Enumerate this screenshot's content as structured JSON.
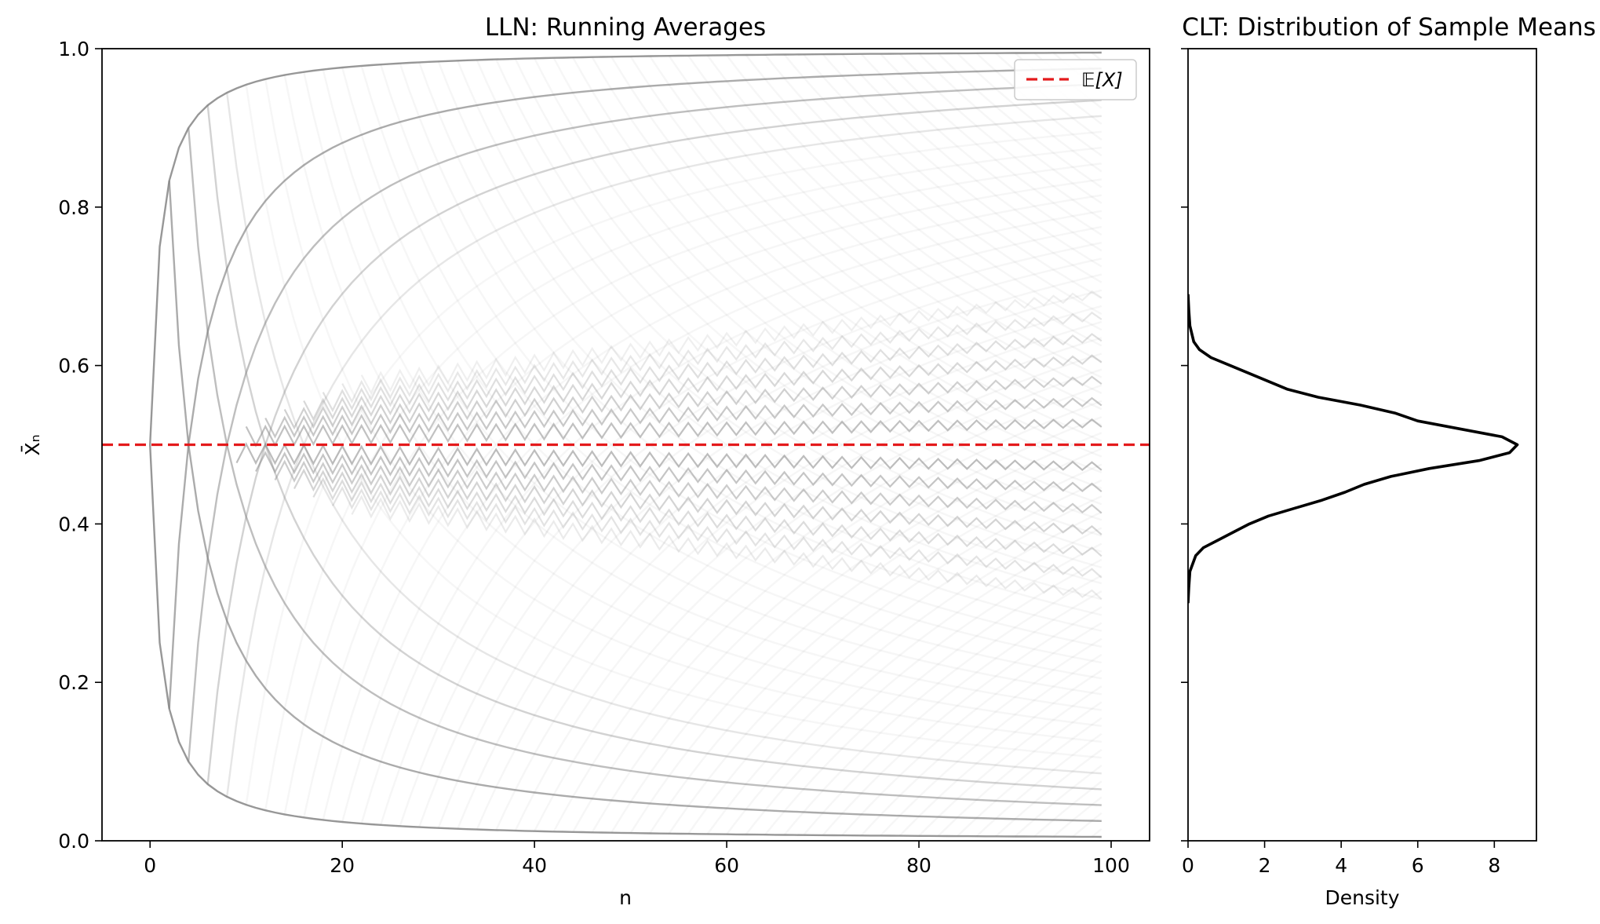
{
  "chart_data": [
    {
      "type": "line",
      "title": "LLN: Running Averages",
      "xlabel": "n",
      "ylabel": "X̄ₙ",
      "xlim": [
        -5,
        104
      ],
      "ylim": [
        0.0,
        1.0
      ],
      "xticks": [
        0,
        20,
        40,
        60,
        80,
        100
      ],
      "yticks": [
        0.0,
        0.2,
        0.4,
        0.6,
        0.8,
        1.0
      ],
      "ytick_labels": [
        "0.0",
        "0.2",
        "0.4",
        "0.6",
        "0.8",
        "1.0"
      ],
      "series_description_n_range": [
        0,
        99
      ],
      "reference_line": {
        "y": 0.5,
        "label": "𝔼[X]",
        "color": "#e41a1c",
        "style": "dashed"
      },
      "legend": {
        "entries": [
          "𝔼[X]"
        ],
        "placement": "top-right"
      },
      "series_color": "#808080",
      "trajectory_envelope": [
        {
          "n": 10,
          "upper": 0.95,
          "lower": 0.05
        },
        {
          "n": 20,
          "upper": 0.85,
          "lower": 0.16
        },
        {
          "n": 40,
          "upper": 0.76,
          "lower": 0.24
        },
        {
          "n": 60,
          "upper": 0.7,
          "lower": 0.3
        },
        {
          "n": 80,
          "upper": 0.67,
          "lower": 0.33
        },
        {
          "n": 99,
          "upper": 0.65,
          "lower": 0.34
        }
      ]
    },
    {
      "type": "line",
      "title": "CLT: Distribution of Sample Means",
      "xlabel": "Density",
      "ylabel": "",
      "xlim": [
        0,
        9.1
      ],
      "ylim": [
        0.0,
        1.0
      ],
      "xticks": [
        0,
        2,
        4,
        6,
        8
      ],
      "orientation": "horizontal density (sample mean on y-axis)",
      "color": "#000000",
      "points": [
        {
          "y": 0.3,
          "density": 0.0
        },
        {
          "y": 0.32,
          "density": 0.02
        },
        {
          "y": 0.34,
          "density": 0.05
        },
        {
          "y": 0.36,
          "density": 0.2
        },
        {
          "y": 0.37,
          "density": 0.4
        },
        {
          "y": 0.38,
          "density": 0.8
        },
        {
          "y": 0.39,
          "density": 1.2
        },
        {
          "y": 0.4,
          "density": 1.6
        },
        {
          "y": 0.41,
          "density": 2.1
        },
        {
          "y": 0.42,
          "density": 2.8
        },
        {
          "y": 0.43,
          "density": 3.5
        },
        {
          "y": 0.44,
          "density": 4.1
        },
        {
          "y": 0.45,
          "density": 4.6
        },
        {
          "y": 0.46,
          "density": 5.3
        },
        {
          "y": 0.47,
          "density": 6.3
        },
        {
          "y": 0.48,
          "density": 7.6
        },
        {
          "y": 0.49,
          "density": 8.4
        },
        {
          "y": 0.5,
          "density": 8.6
        },
        {
          "y": 0.51,
          "density": 8.2
        },
        {
          "y": 0.52,
          "density": 7.1
        },
        {
          "y": 0.53,
          "density": 6.0
        },
        {
          "y": 0.54,
          "density": 5.4
        },
        {
          "y": 0.55,
          "density": 4.5
        },
        {
          "y": 0.56,
          "density": 3.4
        },
        {
          "y": 0.57,
          "density": 2.6
        },
        {
          "y": 0.58,
          "density": 2.1
        },
        {
          "y": 0.59,
          "density": 1.6
        },
        {
          "y": 0.6,
          "density": 1.1
        },
        {
          "y": 0.61,
          "density": 0.6
        },
        {
          "y": 0.62,
          "density": 0.3
        },
        {
          "y": 0.63,
          "density": 0.15
        },
        {
          "y": 0.65,
          "density": 0.05
        },
        {
          "y": 0.67,
          "density": 0.02
        },
        {
          "y": 0.69,
          "density": 0.0
        }
      ]
    }
  ]
}
